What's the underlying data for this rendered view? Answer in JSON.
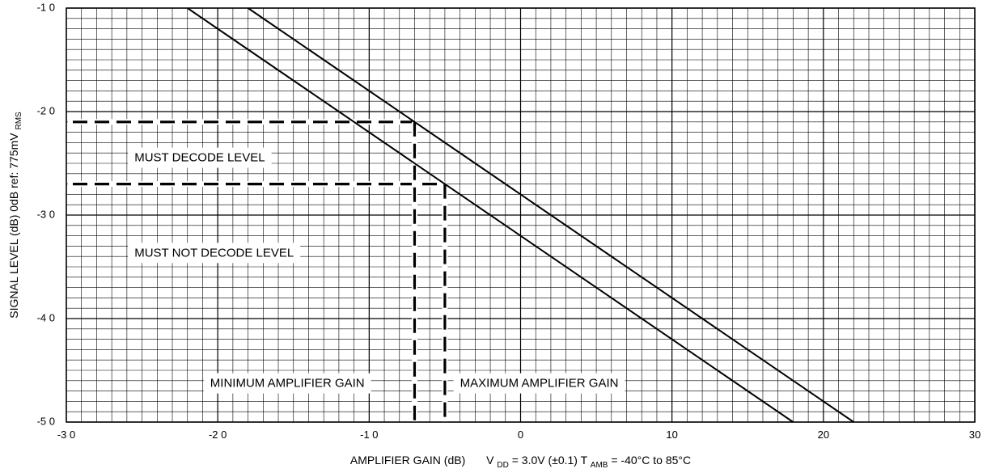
{
  "chart_data": {
    "type": "line",
    "xlabel": "AMPLIFIER GAIN (dB)",
    "ylabel": "SIGNAL LEVEL (dB) 0dB ref: 775mVRMS",
    "ylabel_parts": {
      "main": "SIGNAL LEVEL (dB)  0dB ref:  775mV",
      "sub": "RMS"
    },
    "xlim": [
      -30,
      30
    ],
    "ylim": [
      -50,
      -10
    ],
    "x_ticks": [
      -30,
      -20,
      -10,
      0,
      10,
      20,
      30
    ],
    "y_ticks": [
      -10,
      -20,
      -30,
      -40,
      -50
    ],
    "x_tick_labels": [
      "-3 0",
      "-2 0",
      "-1 0",
      "0",
      "10",
      "20",
      "30"
    ],
    "y_tick_labels": [
      "-1 0",
      "-2 0",
      "-3 0",
      "-4 0",
      "-5 0"
    ],
    "grid": {
      "major": true,
      "minor_x_step": 1,
      "minor_y_step": 1
    },
    "conditions": {
      "vdd_sym": "V",
      "vdd_sub": "DD",
      "vdd_val": " = 3.0V (±0.1)  ",
      "tamb_sym": "T",
      "tamb_sub": "AMB",
      "tamb_val": " = -40°C to 85°C"
    },
    "series": [
      {
        "x": [
          -18,
          22
        ],
        "y": [
          -10,
          -50
        ]
      },
      {
        "x": [
          -22,
          18
        ],
        "y": [
          -10,
          -50
        ]
      }
    ],
    "reference_lines": {
      "horizontal": [
        {
          "y": -21,
          "x_from": -30,
          "x_to": -7
        },
        {
          "y": -27,
          "x_from": -30,
          "x_to": -5
        }
      ],
      "vertical": [
        {
          "x": -7,
          "y_from": -21,
          "y_to": -50
        },
        {
          "x": -5,
          "y_from": -27,
          "y_to": -50
        }
      ]
    },
    "annotations": [
      {
        "text": "MUST DECODE LEVEL",
        "x": -25.5,
        "y": -24.5
      },
      {
        "text": "MUST NOT DECODE LEVEL",
        "x": -25.5,
        "y": -33.7
      },
      {
        "text": "MINIMUM AMPLIFIER GAIN",
        "x": -20.5,
        "y": -46.3
      },
      {
        "text": "MAXIMUM AMPLIFIER GAIN",
        "x": -4.0,
        "y": -46.3
      }
    ]
  }
}
